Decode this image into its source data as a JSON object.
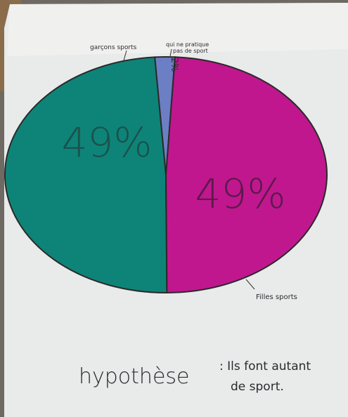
{
  "chart_data": {
    "type": "pie",
    "title": "",
    "slices": [
      {
        "label": "garçons sports",
        "value": 49,
        "value_label": "49%",
        "color": "#0e8478"
      },
      {
        "label": "qui ne pratiquent pas de sport",
        "value": 2,
        "value_label": "2%",
        "color": "#6c7fc4"
      },
      {
        "label": "Filles sports",
        "value": 49,
        "value_label": "49%",
        "color": "#c0178f"
      }
    ],
    "legend": "none"
  },
  "annotations": {
    "top_left": "garçons sports",
    "top_right_line1": "qui ne pratique",
    "top_right_line2": "pas de sport",
    "bottom_right": "Filles sports"
  },
  "hypothesis": {
    "word": "hypothèse",
    "line1": ": Ils font autant",
    "line2": "de sport."
  }
}
